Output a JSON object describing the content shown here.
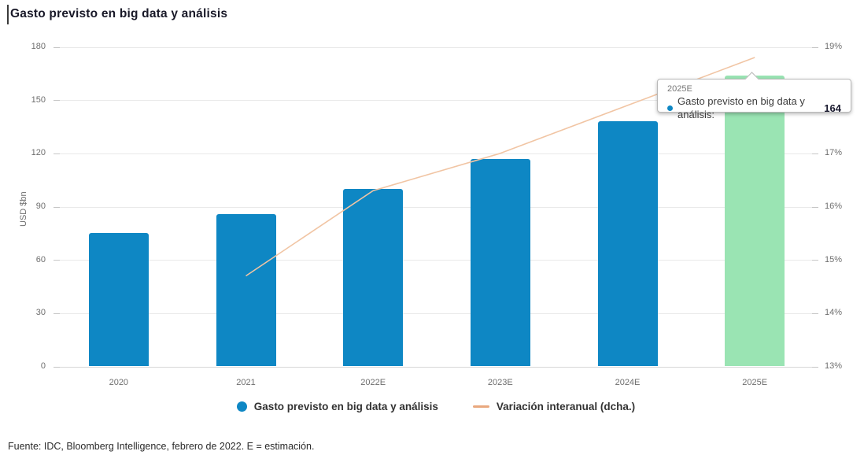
{
  "title": "Gasto previsto en big data y análisis",
  "footer": {
    "text": "Fuente: IDC, Bloomberg Intelligence, febrero de 2022. E = estimación."
  },
  "legend": {
    "items": [
      {
        "label": "Gasto previsto en big data y análisis",
        "marker": "circle"
      },
      {
        "label": "Variación interanual (dcha.)",
        "marker": "line"
      }
    ]
  },
  "tooltip": {
    "category": "2025E",
    "label": "Gasto previsto en big data y análisis:",
    "value": "164"
  },
  "chart_data": {
    "type": "bar",
    "categories": [
      "2020",
      "2021",
      "2022E",
      "2023E",
      "2024E",
      "2025E"
    ],
    "series": [
      {
        "name": "Gasto previsto en big data y análisis",
        "type": "bar",
        "axis": "left",
        "values": [
          75,
          86,
          100,
          117,
          138,
          164
        ],
        "highlighted_index": 5
      },
      {
        "name": "Variación interanual (dcha.)",
        "type": "line",
        "axis": "right",
        "values": [
          null,
          14.7,
          16.3,
          17.0,
          17.9,
          18.8
        ]
      }
    ],
    "left_axis": {
      "label": "USD $bn",
      "ticks": [
        0,
        30,
        60,
        90,
        120,
        150,
        180
      ],
      "range": [
        0,
        180
      ]
    },
    "right_axis": {
      "tick_labels": [
        "13%",
        "14%",
        "15%",
        "16%",
        "17%",
        "18%",
        "19%"
      ],
      "range": [
        13,
        19
      ]
    },
    "legend_position": "bottom",
    "grid": true,
    "colors": {
      "bar": "#0e87c4",
      "bar_highlight": "#9ae4b3",
      "line": "#f1c5a4",
      "legend_line": "#e9a87e",
      "grid": "#e9e9e9",
      "axis_text": "#6e6e6e",
      "title_text": "#191928"
    }
  }
}
